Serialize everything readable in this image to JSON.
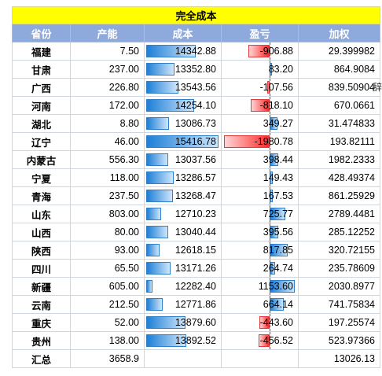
{
  "title": "完全成本",
  "headers": [
    "省份",
    "产能",
    "成本",
    "盈亏",
    "加权"
  ],
  "rows": [
    {
      "province": "福建",
      "capacity": "7.50",
      "cost": "14342.88",
      "cost_value": 14342.88,
      "profit": "-906.88",
      "profit_value": -906.88,
      "weighted": "29.399982"
    },
    {
      "province": "甘肃",
      "capacity": "237.00",
      "cost": "13352.80",
      "cost_value": 13352.8,
      "profit": "83.20",
      "profit_value": 83.2,
      "weighted": "864.9084"
    },
    {
      "province": "广西",
      "capacity": "226.80",
      "cost": "13543.56",
      "cost_value": 13543.56,
      "profit": "-107.56",
      "profit_value": -107.56,
      "weighted": "839.50904"
    },
    {
      "province": "河南",
      "capacity": "172.00",
      "cost": "14254.10",
      "cost_value": 14254.1,
      "profit": "-818.10",
      "profit_value": -818.1,
      "weighted": "670.0661"
    },
    {
      "province": "湖北",
      "capacity": "8.80",
      "cost": "13086.73",
      "cost_value": 13086.73,
      "profit": "349.27",
      "profit_value": 349.27,
      "weighted": "31.474833"
    },
    {
      "province": "辽宁",
      "capacity": "46.00",
      "cost": "15416.78",
      "cost_value": 15416.78,
      "profit": "-1980.78",
      "profit_value": -1980.78,
      "weighted": "193.82111"
    },
    {
      "province": "内蒙古",
      "capacity": "556.30",
      "cost": "13037.56",
      "cost_value": 13037.56,
      "profit": "398.44",
      "profit_value": 398.44,
      "weighted": "1982.2333"
    },
    {
      "province": "宁夏",
      "capacity": "118.00",
      "cost": "13286.57",
      "cost_value": 13286.57,
      "profit": "149.43",
      "profit_value": 149.43,
      "weighted": "428.49374"
    },
    {
      "province": "青海",
      "capacity": "237.50",
      "cost": "13268.47",
      "cost_value": 13268.47,
      "profit": "167.53",
      "profit_value": 167.53,
      "weighted": "861.25929"
    },
    {
      "province": "山东",
      "capacity": "803.00",
      "cost": "12710.23",
      "cost_value": 12710.23,
      "profit": "725.77",
      "profit_value": 725.77,
      "weighted": "2789.4481"
    },
    {
      "province": "山西",
      "capacity": "80.00",
      "cost": "13040.44",
      "cost_value": 13040.44,
      "profit": "395.56",
      "profit_value": 395.56,
      "weighted": "285.12252"
    },
    {
      "province": "陕西",
      "capacity": "93.00",
      "cost": "12618.15",
      "cost_value": 12618.15,
      "profit": "817.85",
      "profit_value": 817.85,
      "weighted": "320.72155"
    },
    {
      "province": "四川",
      "capacity": "65.50",
      "cost": "13171.26",
      "cost_value": 13171.26,
      "profit": "264.74",
      "profit_value": 264.74,
      "weighted": "235.78609"
    },
    {
      "province": "新疆",
      "capacity": "605.00",
      "cost": "12282.40",
      "cost_value": 12282.4,
      "profit": "1153.60",
      "profit_value": 1153.6,
      "weighted": "2030.8977"
    },
    {
      "province": "云南",
      "capacity": "212.50",
      "cost": "12771.86",
      "cost_value": 12771.86,
      "profit": "664.14",
      "profit_value": 664.14,
      "weighted": "741.75834"
    },
    {
      "province": "重庆",
      "capacity": "52.00",
      "cost": "13879.60",
      "cost_value": 13879.6,
      "profit": "-443.60",
      "profit_value": -443.6,
      "weighted": "197.25574"
    },
    {
      "province": "贵州",
      "capacity": "138.00",
      "cost": "13892.52",
      "cost_value": 13892.52,
      "profit": "-456.52",
      "profit_value": -456.52,
      "weighted": "523.97366"
    }
  ],
  "total": {
    "label": "汇总",
    "capacity": "3658.9",
    "weighted": "13026.13"
  },
  "edge_text": "辞",
  "colors": {
    "header_bg": "#8ea9db",
    "title_bg": "#ffff00",
    "positive_bar": "#1e7fd6",
    "negative_bar": "#ff2a2a"
  }
}
